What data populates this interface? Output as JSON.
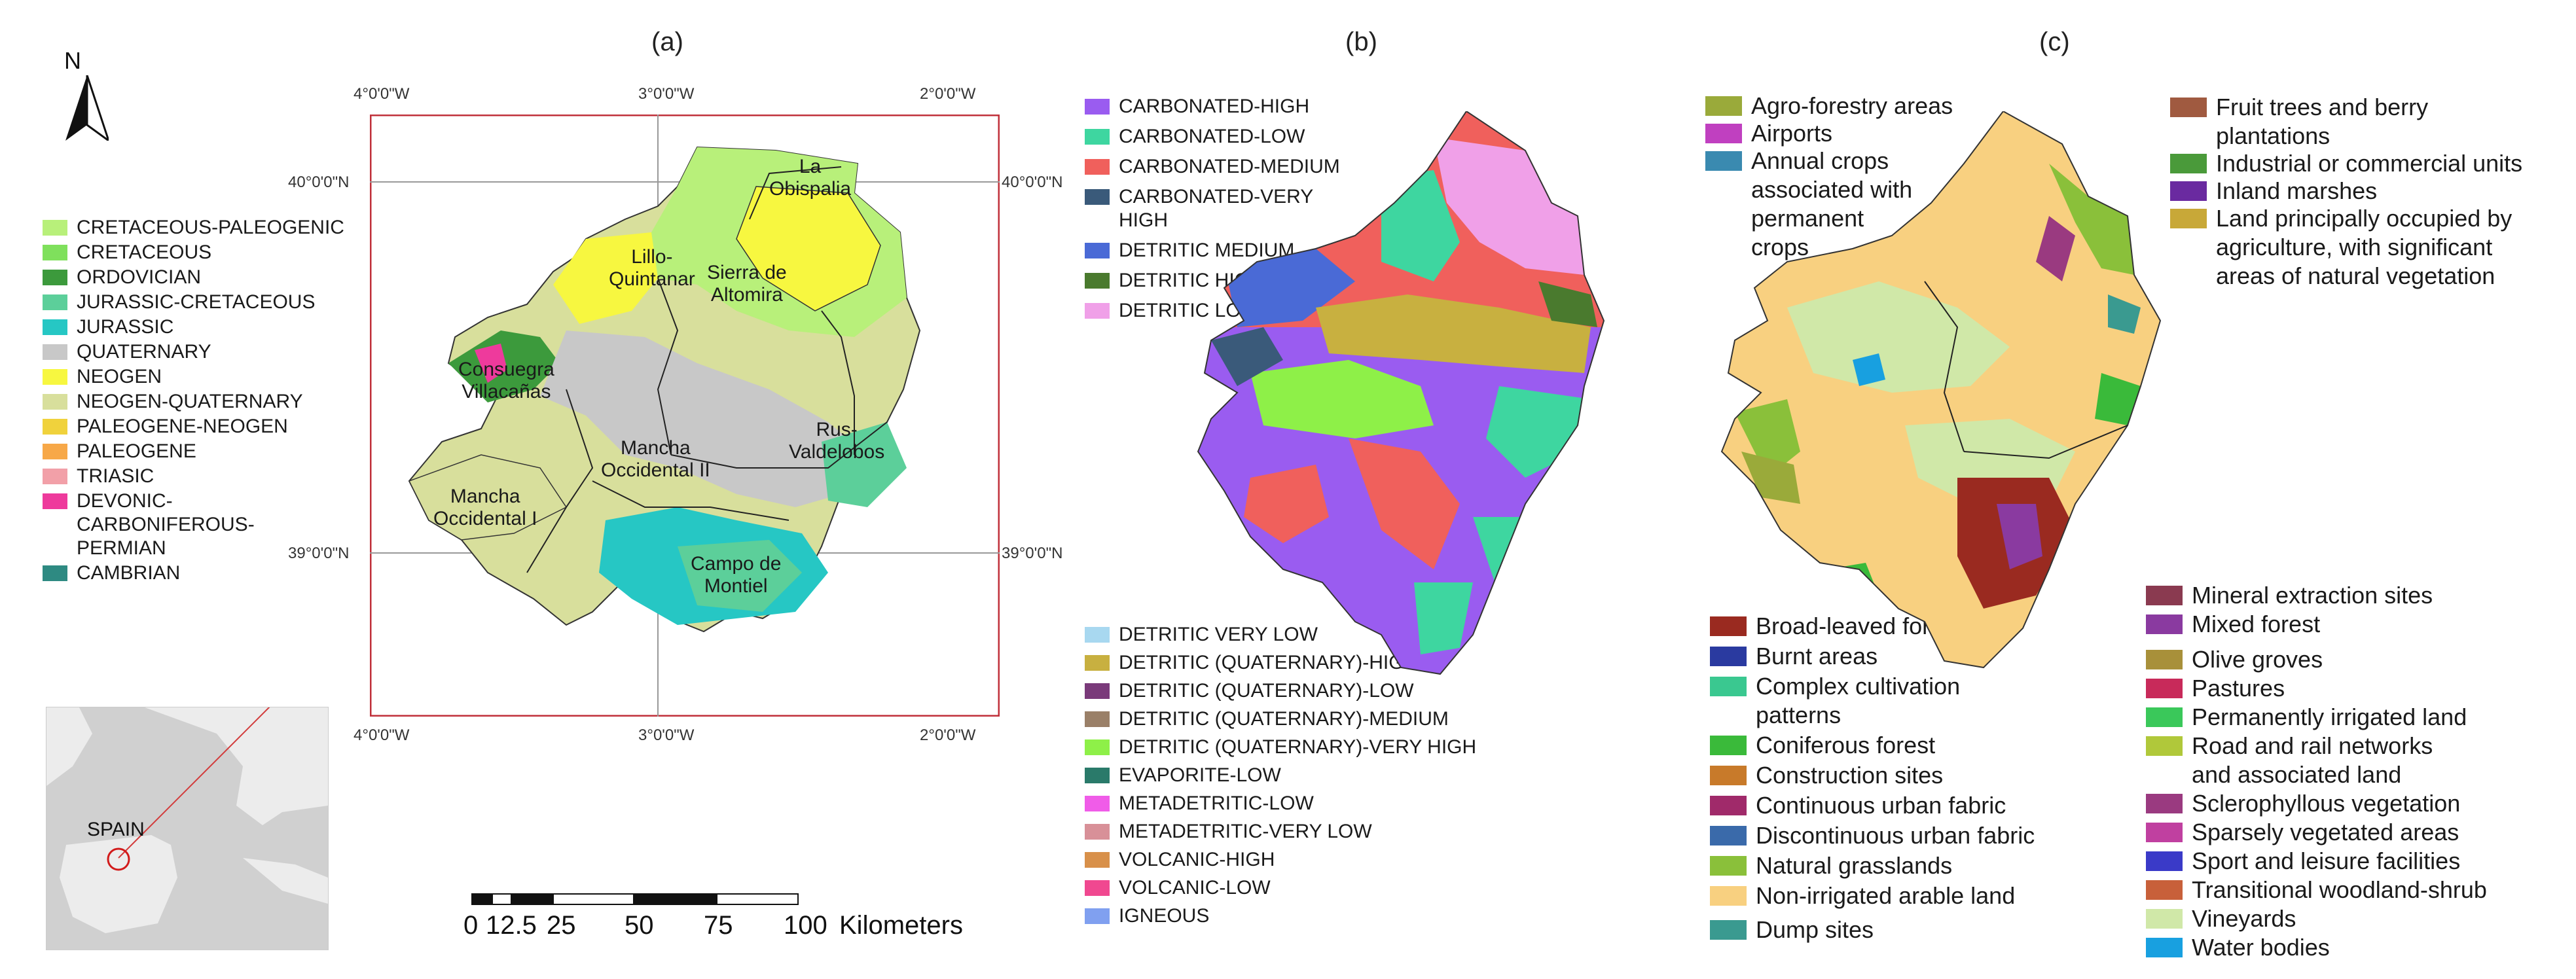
{
  "panels": {
    "a": "(a)",
    "b": "(b)",
    "c": "(c)"
  },
  "north_arrow": {
    "label": "N"
  },
  "coords": {
    "top_x": [
      "4°0'0\"W",
      "3°0'0\"W",
      "2°0'0\"W"
    ],
    "bottom_x": [
      "4°0'0\"W",
      "3°0'0\"W",
      "2°0'0\"W"
    ],
    "left_y": [
      "40°0'0\"N",
      "39°0'0\"N"
    ],
    "right_y": [
      "40°0'0\"N",
      "39°0'0\"N"
    ]
  },
  "map_labels": {
    "la_obispalia": "La\nObispalia",
    "lillo_quintanar": "Lillo-\nQuintanar",
    "sierra_altomira": "Sierra de\nAltomira",
    "consuegra": "Consuegra\nVillacañas",
    "rus_valdelobos": "Rus-\nValdelobos",
    "mancha_occ_ii": "Mancha\nOccidental II",
    "mancha_occ_i": "Mancha\nOccidental I",
    "campo_montiel": "Campo de\nMontiel"
  },
  "inset": {
    "label": "SPAIN"
  },
  "scale_bar": {
    "ticks": [
      "0",
      "12.5",
      "25",
      "50",
      "75",
      "100"
    ],
    "unit": "Kilometers"
  },
  "legend_a": [
    {
      "label": "CRETACEOUS-PALEOGENIC",
      "color": "#b8f07a"
    },
    {
      "label": "CRETACEOUS",
      "color": "#7fe05c"
    },
    {
      "label": "ORDOVICIAN",
      "color": "#3c9a3c"
    },
    {
      "label": "JURASSIC-CRETACEOUS",
      "color": "#5ccf9a"
    },
    {
      "label": "JURASSIC",
      "color": "#26c7c4"
    },
    {
      "label": "QUATERNARY",
      "color": "#c8c8c8"
    },
    {
      "label": "NEOGEN",
      "color": "#f7f740"
    },
    {
      "label": "NEOGEN-QUATERNARY",
      "color": "#d8df9c"
    },
    {
      "label": "PALEOGENE-NEOGEN",
      "color": "#f0d23c"
    },
    {
      "label": "PALEOGENE",
      "color": "#f7a848"
    },
    {
      "label": "TRIASIC",
      "color": "#f2a0a8"
    },
    {
      "label": "DEVONIC-\nCARBONIFEROUS-\nPERMIAN",
      "color": "#ee3a9c"
    },
    {
      "label": "CAMBRIAN",
      "color": "#2e8a82"
    }
  ],
  "legend_b_top": [
    {
      "label": "CARBONATED-HIGH",
      "color": "#9a5cf0"
    },
    {
      "label": "CARBONATED-LOW",
      "color": "#3ed6a0"
    },
    {
      "label": "CARBONATED-MEDIUM",
      "color": "#f0605c"
    },
    {
      "label": "CARBONATED-VERY\nHIGH",
      "color": "#3a5a7a"
    },
    {
      "label": "DETRITIC MEDIUM",
      "color": "#4a6ad6"
    },
    {
      "label": "DETRITIC HIGH",
      "color": "#4a7a2e"
    },
    {
      "label": "DETRITIC LOW",
      "color": "#f0a0e8"
    }
  ],
  "legend_b_bottom": [
    {
      "label": "DETRITIC VERY LOW",
      "color": "#a8d8f0"
    },
    {
      "label": "DETRITIC (QUATERNARY)-HIGH",
      "color": "#c8b040"
    },
    {
      "label": "DETRITIC (QUATERNARY)-LOW",
      "color": "#7a3a7a"
    },
    {
      "label": "DETRITIC (QUATERNARY)-MEDIUM",
      "color": "#9a8068"
    },
    {
      "label": "DETRITIC (QUATERNARY)-VERY HIGH",
      "color": "#8ef048"
    },
    {
      "label": "EVAPORITE-LOW",
      "color": "#2a7a6a"
    },
    {
      "label": "METADETRITIC-LOW",
      "color": "#f05ce8"
    },
    {
      "label": "METADETRITIC-VERY LOW",
      "color": "#d89098"
    },
    {
      "label": "VOLCANIC-HIGH",
      "color": "#d8904a"
    },
    {
      "label": "VOLCANIC-LOW",
      "color": "#f04890"
    },
    {
      "label": "IGNEOUS",
      "color": "#80a0f0"
    }
  ],
  "legend_c_left_top": [
    {
      "label": "Agro-forestry areas",
      "color": "#9aaa3a"
    },
    {
      "label": "Airports",
      "color": "#c040c0"
    },
    {
      "label": "Annual crops\nassociated with\npermanent\ncrops",
      "color": "#3a8ab0"
    }
  ],
  "legend_c_right_top": [
    {
      "label": "Fruit trees and berry\nplantations",
      "color": "#a05a40"
    },
    {
      "label": "Industrial or commercial units",
      "color": "#4a9a3a"
    },
    {
      "label": "Inland marshes",
      "color": "#6a2aa0"
    },
    {
      "label": "Land principally occupied by\nagriculture, with significant\nareas of natural vegetation",
      "color": "#c8a838"
    }
  ],
  "legend_c_left_bottom": [
    {
      "label": "Broad-leaved forest",
      "color": "#9a2a20"
    },
    {
      "label": "Burnt areas",
      "color": "#2a3aa0"
    },
    {
      "label": "Complex cultivation\npatterns",
      "color": "#3ac890"
    },
    {
      "label": "Coniferous forest",
      "color": "#3aba3a"
    },
    {
      "label": "Construction sites",
      "color": "#c87a2a"
    },
    {
      "label": "Continuous urban fabric",
      "color": "#a02a6a"
    },
    {
      "label": "Discontinuous urban fabric",
      "color": "#3a6aaa"
    },
    {
      "label": "Natural grasslands",
      "color": "#8ac03a"
    },
    {
      "label": "Non-irrigated arable land",
      "color": "#f8d080"
    },
    {
      "label": "Dump sites",
      "color": "#3a9a90"
    }
  ],
  "legend_c_right_bottom": [
    {
      "label": "Mineral extraction sites",
      "color": "#8a3a50"
    },
    {
      "label": "Mixed forest",
      "color": "#8a3aa0"
    },
    {
      "label": "Olive groves",
      "color": "#a8903a"
    },
    {
      "label": "Pastures",
      "color": "#c82a5a"
    },
    {
      "label": "Permanently irrigated land",
      "color": "#3ac85a"
    },
    {
      "label": "Road and rail networks\nand associated land",
      "color": "#b0c83a"
    },
    {
      "label": "Sclerophyllous vegetation",
      "color": "#9a3a80"
    },
    {
      "label": "Sparsely vegetated areas",
      "color": "#c040a0"
    },
    {
      "label": "Sport and leisure facilities",
      "color": "#3a3ac8"
    },
    {
      "label": "Transitional woodland-shrub",
      "color": "#c8603a"
    },
    {
      "label": "Vineyards",
      "color": "#d0e8a8"
    },
    {
      "label": "Water bodies",
      "color": "#18a0e0"
    }
  ]
}
